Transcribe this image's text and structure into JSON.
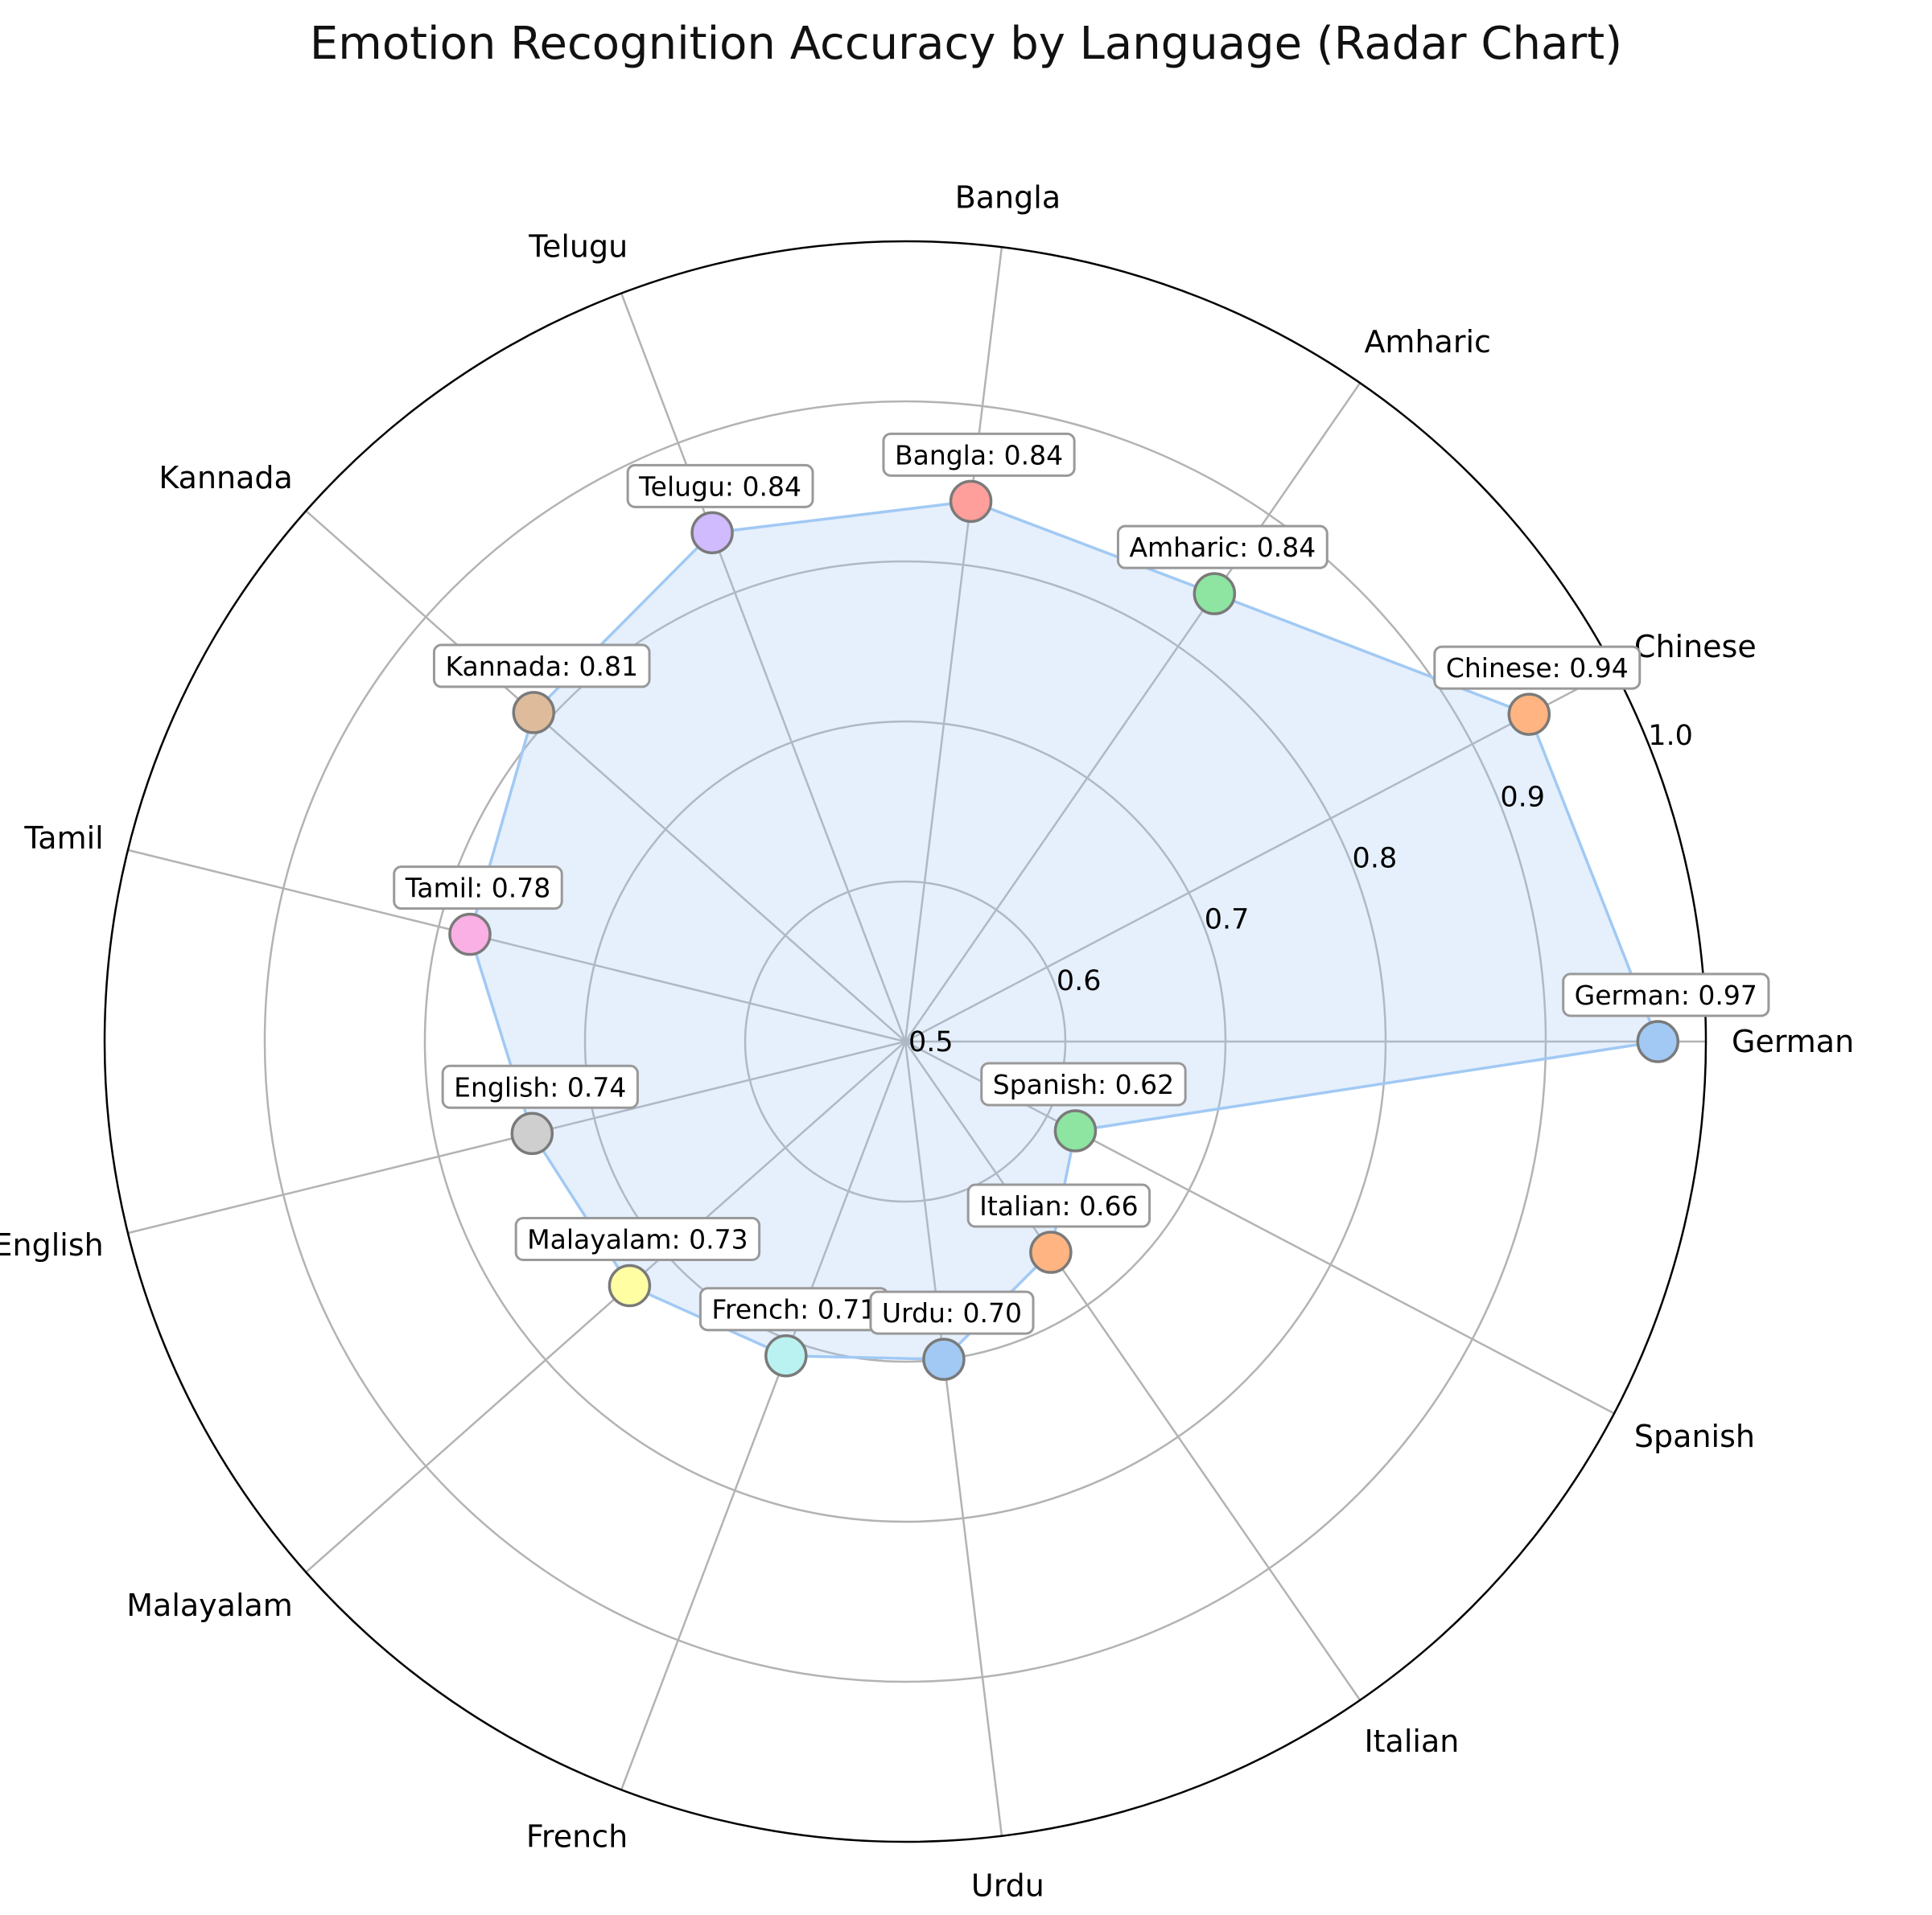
{
  "chart_data": {
    "type": "radar",
    "title": "Emotion Recognition Accuracy by Language (Radar Chart)",
    "rlim": [
      0.5,
      1.0
    ],
    "rticks": [
      "0.5",
      "0.6",
      "0.7",
      "0.8",
      "0.9",
      "1.0"
    ],
    "grid": true,
    "categories": [
      "German",
      "Chinese",
      "Amharic",
      "Bangla",
      "Telugu",
      "Kannada",
      "Tamil",
      "English",
      "Malayalam",
      "French",
      "Urdu",
      "Italian",
      "Spanish"
    ],
    "values": [
      0.97,
      0.94,
      0.84,
      0.84,
      0.84,
      0.81,
      0.78,
      0.74,
      0.73,
      0.71,
      0.7,
      0.66,
      0.62
    ],
    "annotations": [
      "German: 0.97",
      "Chinese: 0.94",
      "Amharic: 0.84",
      "Bangla: 0.84",
      "Telugu: 0.84",
      "Kannada: 0.81",
      "Tamil: 0.78",
      "English: 0.74",
      "Malayalam: 0.73",
      "French: 0.71",
      "Urdu: 0.70",
      "Italian: 0.66",
      "Spanish: 0.62"
    ],
    "marker_colors": [
      "#a1c9f4",
      "#ffb482",
      "#8de5a1",
      "#ff9f9b",
      "#d0bbff",
      "#debb9b",
      "#fab0e4",
      "#cfcfcf",
      "#fffea3",
      "#b9f2f0",
      "#a1c9f4",
      "#ffb482",
      "#8de5a1"
    ],
    "fill_color": "#a1c9f4"
  }
}
